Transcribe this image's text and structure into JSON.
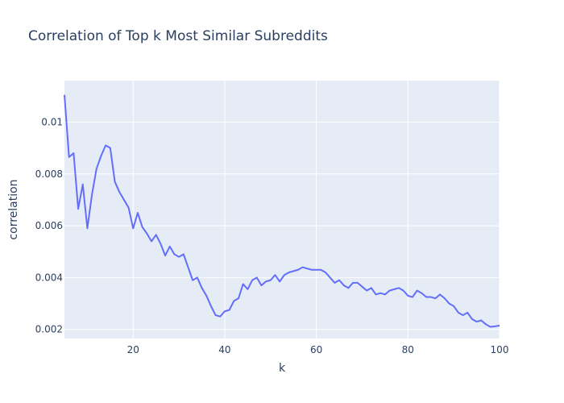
{
  "chart_data": {
    "type": "line",
    "title": "Correlation of Top k Most Similar Subreddits",
    "xlabel": "k",
    "ylabel": "correlation",
    "xlim": [
      5,
      100
    ],
    "ylim": [
      0.00165,
      0.0116
    ],
    "x_ticks": [
      20,
      40,
      60,
      80,
      100
    ],
    "x_tick_labels": [
      "20",
      "40",
      "60",
      "80",
      "100"
    ],
    "y_ticks": [
      0.002,
      0.004,
      0.006,
      0.008,
      0.01
    ],
    "y_tick_labels": [
      "0.002",
      "0.004",
      "0.006",
      "0.008",
      "0.01"
    ],
    "grid": true,
    "legend": "none",
    "colors": {
      "line": "#636efa",
      "plot_bg": "#e5ecf6",
      "grid": "#ffffff",
      "text": "#2a3f5f"
    },
    "series": [
      {
        "x": [
          5,
          6,
          7,
          8,
          9,
          10,
          11,
          12,
          13,
          14,
          15,
          16,
          17,
          18,
          19,
          20,
          21,
          22,
          23,
          24,
          25,
          26,
          27,
          28,
          29,
          30,
          31,
          32,
          33,
          34,
          35,
          36,
          37,
          38,
          39,
          40,
          41,
          42,
          43,
          44,
          45,
          46,
          47,
          48,
          49,
          50,
          51,
          52,
          53,
          54,
          55,
          56,
          57,
          58,
          59,
          60,
          61,
          62,
          63,
          64,
          65,
          66,
          67,
          68,
          69,
          70,
          71,
          72,
          73,
          74,
          75,
          76,
          77,
          78,
          79,
          80,
          81,
          82,
          83,
          84,
          85,
          86,
          87,
          88,
          89,
          90,
          91,
          92,
          93,
          94,
          95,
          96,
          97,
          98,
          99,
          100
        ],
        "values": [
          0.01105,
          0.00865,
          0.0088,
          0.00665,
          0.0076,
          0.0059,
          0.0072,
          0.0082,
          0.0087,
          0.0091,
          0.009,
          0.0077,
          0.0073,
          0.007,
          0.0067,
          0.0059,
          0.0065,
          0.00595,
          0.0057,
          0.0054,
          0.00565,
          0.0053,
          0.00485,
          0.0052,
          0.0049,
          0.0048,
          0.0049,
          0.0044,
          0.0039,
          0.004,
          0.0036,
          0.0033,
          0.0029,
          0.00255,
          0.0025,
          0.0027,
          0.00275,
          0.0031,
          0.0032,
          0.00375,
          0.00355,
          0.0039,
          0.004,
          0.0037,
          0.00385,
          0.0039,
          0.0041,
          0.00385,
          0.0041,
          0.0042,
          0.00425,
          0.0043,
          0.0044,
          0.00435,
          0.0043,
          0.0043,
          0.0043,
          0.0042,
          0.004,
          0.0038,
          0.0039,
          0.0037,
          0.0036,
          0.0038,
          0.0038,
          0.00365,
          0.0035,
          0.0036,
          0.00335,
          0.0034,
          0.00335,
          0.0035,
          0.00355,
          0.0036,
          0.0035,
          0.0033,
          0.00325,
          0.0035,
          0.0034,
          0.00325,
          0.00325,
          0.0032,
          0.00335,
          0.0032,
          0.003,
          0.0029,
          0.00265,
          0.00255,
          0.00265,
          0.0024,
          0.0023,
          0.00235,
          0.0022,
          0.0021,
          0.00212,
          0.00215
        ]
      }
    ]
  }
}
